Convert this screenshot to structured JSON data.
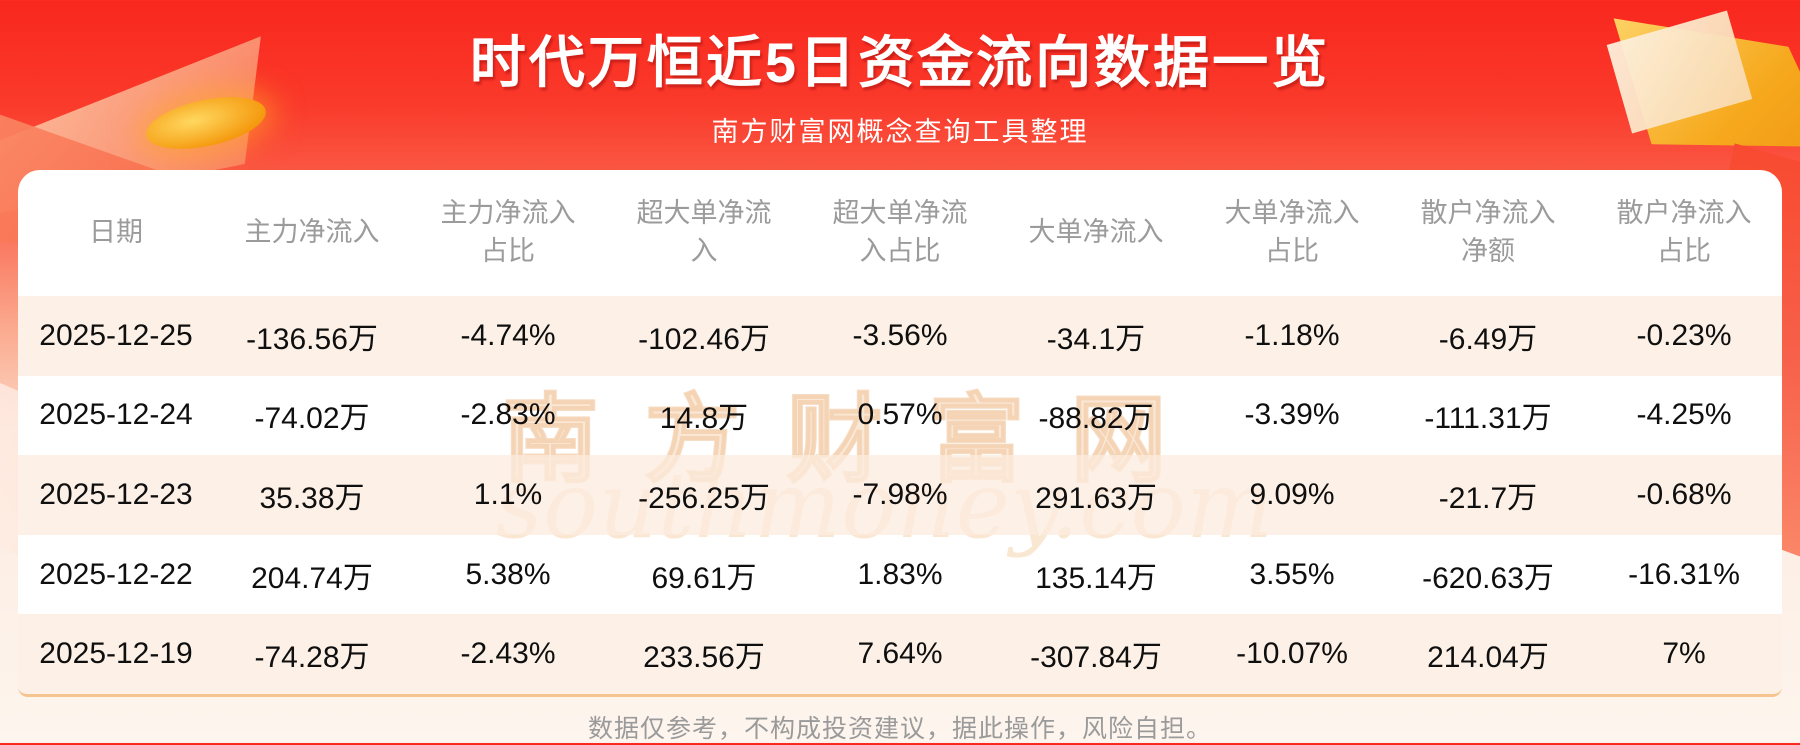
{
  "banner": {
    "title": "时代万恒近5日资金流向数据一览",
    "subtitle": "南方财富网概念查询工具整理"
  },
  "chart_data": {
    "type": "table",
    "title": "时代万恒近5日资金流向数据一览",
    "columns": [
      "日期",
      "主力净流入",
      "主力净流入占比",
      "超大单净流入",
      "超大单净流入占比",
      "大单净流入",
      "大单净流入占比",
      "散户净流入净额",
      "散户净流入占比"
    ],
    "rows": [
      [
        "2025-12-25",
        "-136.56万",
        "-4.74%",
        "-102.46万",
        "-3.56%",
        "-34.1万",
        "-1.18%",
        "-6.49万",
        "-0.23%"
      ],
      [
        "2025-12-24",
        "-74.02万",
        "-2.83%",
        "14.8万",
        "0.57%",
        "-88.82万",
        "-3.39%",
        "-111.31万",
        "-4.25%"
      ],
      [
        "2025-12-23",
        "35.38万",
        "1.1%",
        "-256.25万",
        "-7.98%",
        "291.63万",
        "9.09%",
        "-21.7万",
        "-0.68%"
      ],
      [
        "2025-12-22",
        "204.74万",
        "5.38%",
        "69.61万",
        "1.83%",
        "135.14万",
        "3.55%",
        "-620.63万",
        "-16.31%"
      ],
      [
        "2025-12-19",
        "-74.28万",
        "-2.43%",
        "233.56万",
        "7.64%",
        "-307.84万",
        "-10.07%",
        "214.04万",
        "7%"
      ]
    ]
  },
  "watermark": {
    "cn": "南方财富网",
    "en": "southmoney.com"
  },
  "footer": {
    "disclaimer": "数据仅参考，不构成投资建议，据此操作，风险自担。"
  },
  "colors": {
    "banner_red": "#f9271e",
    "card_bg": "#ffffff",
    "row_alt_bg": "#fcf0e5",
    "header_text": "#9b9b9b",
    "body_text": "#0f0f0f",
    "accent_line": "#f6c48e",
    "gold": "#f6a81c"
  }
}
